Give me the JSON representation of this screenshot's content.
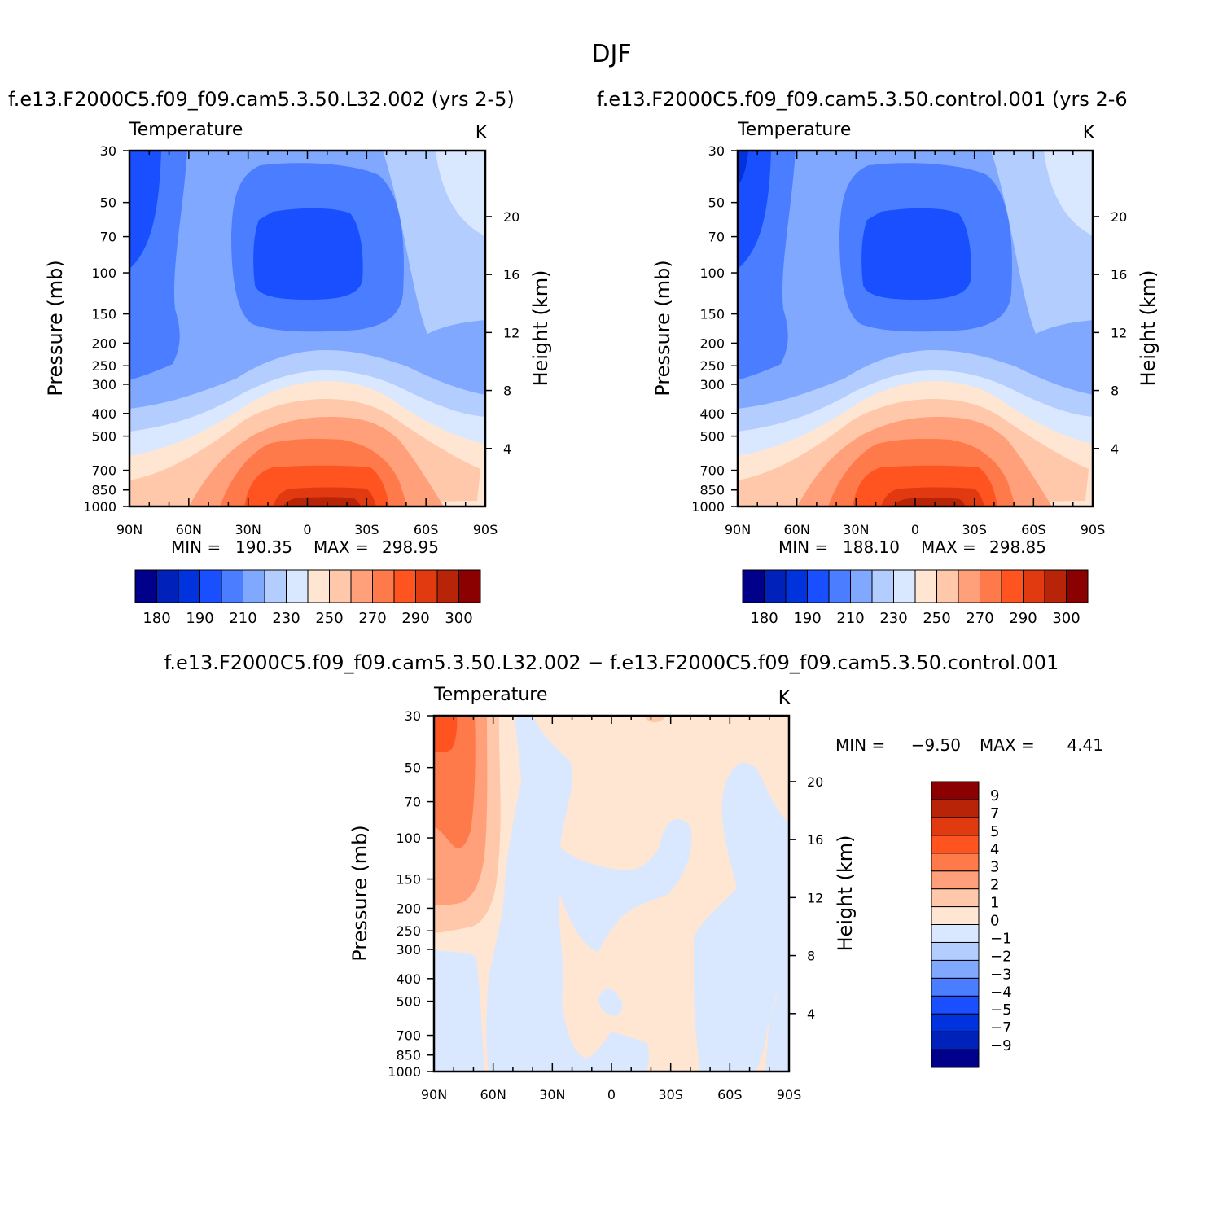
{
  "title": "DJF",
  "units": "K",
  "variable": "Temperature",
  "chart_data": [
    {
      "type": "heatmap",
      "id": "case",
      "run_title": "f.e13.F2000C5.f09_f09.cam5.3.50.L32.002 (yrs 2-5)",
      "variable": "Temperature",
      "units": "K",
      "x_ticks": [
        "90N",
        "60N",
        "30N",
        "0",
        "30S",
        "60S",
        "90S"
      ],
      "x_range": [
        90,
        -90
      ],
      "y_ticks": [
        "30",
        "50",
        "70",
        "100",
        "150",
        "200",
        "250",
        "300",
        "400",
        "500",
        "700",
        "850",
        "1000"
      ],
      "y_range_mb": [
        30,
        1000
      ],
      "y_scale": "log",
      "ylabel": "Pressure (mb)",
      "y2_ticks": [
        "20",
        "16",
        "12",
        "8",
        "4"
      ],
      "y2label": "Height (km)",
      "min_label": "MIN =",
      "min_value": "190.35",
      "max_label": "MAX =",
      "max_value": "298.95",
      "colorbar_labels": [
        "180",
        "190",
        "210",
        "230",
        "250",
        "270",
        "290",
        "300"
      ],
      "levels": [
        180,
        185,
        190,
        200,
        210,
        220,
        230,
        240,
        250,
        260,
        270,
        280,
        290,
        295,
        300
      ],
      "colorbar_orientation": "horizontal"
    },
    {
      "type": "heatmap",
      "id": "control",
      "run_title": "f.e13.F2000C5.f09_f09.cam5.3.50.control.001 (yrs 2-6",
      "variable": "Temperature",
      "units": "K",
      "x_ticks": [
        "90N",
        "60N",
        "30N",
        "0",
        "30S",
        "60S",
        "90S"
      ],
      "x_range": [
        90,
        -90
      ],
      "y_ticks": [
        "30",
        "50",
        "70",
        "100",
        "150",
        "200",
        "250",
        "300",
        "400",
        "500",
        "700",
        "850",
        "1000"
      ],
      "y_range_mb": [
        30,
        1000
      ],
      "y_scale": "log",
      "ylabel": "Pressure (mb)",
      "y2_ticks": [
        "20",
        "16",
        "12",
        "8",
        "4"
      ],
      "y2label": "Height (km)",
      "min_label": "MIN =",
      "min_value": "188.10",
      "max_label": "MAX =",
      "max_value": "298.85",
      "colorbar_labels": [
        "180",
        "190",
        "210",
        "230",
        "250",
        "270",
        "290",
        "300"
      ],
      "levels": [
        180,
        185,
        190,
        200,
        210,
        220,
        230,
        240,
        250,
        260,
        270,
        280,
        290,
        295,
        300
      ],
      "colorbar_orientation": "horizontal"
    },
    {
      "type": "heatmap",
      "id": "diff",
      "run_title": "f.e13.F2000C5.f09_f09.cam5.3.50.L32.002 − f.e13.F2000C5.f09_f09.cam5.3.50.control.001",
      "variable": "Temperature",
      "units": "K",
      "x_ticks": [
        "90N",
        "60N",
        "30N",
        "0",
        "30S",
        "60S",
        "90S"
      ],
      "x_range": [
        90,
        -90
      ],
      "y_ticks": [
        "30",
        "50",
        "70",
        "100",
        "150",
        "200",
        "250",
        "300",
        "400",
        "500",
        "700",
        "850",
        "1000"
      ],
      "y_range_mb": [
        30,
        1000
      ],
      "y_scale": "log",
      "ylabel": "Pressure (mb)",
      "y2_ticks": [
        "20",
        "16",
        "12",
        "8",
        "4"
      ],
      "y2label": "Height (km)",
      "min_label": "MIN =",
      "min_value": "−9.50",
      "max_label": "MAX =",
      "max_value": "4.41",
      "colorbar_labels": [
        "9",
        "7",
        "5",
        "4",
        "3",
        "2",
        "1",
        "0",
        "−1",
        "−2",
        "−3",
        "−4",
        "−5",
        "−7",
        "−9"
      ],
      "levels": [
        -9,
        -7,
        -5,
        -4,
        -3,
        -2,
        -1,
        0,
        1,
        2,
        3,
        4,
        5,
        7,
        9
      ],
      "colorbar_orientation": "vertical"
    }
  ],
  "palette": {
    "colors": [
      "#00008B",
      "#0022BB",
      "#0033DD",
      "#1A4FFF",
      "#4A7DFF",
      "#80A8FF",
      "#B3CDFF",
      "#D9E8FF",
      "#FFE6D2",
      "#FFC8AA",
      "#FFA07A",
      "#FF7A4A",
      "#FF5420",
      "#E23A10",
      "#B82408",
      "#8B0000"
    ]
  }
}
